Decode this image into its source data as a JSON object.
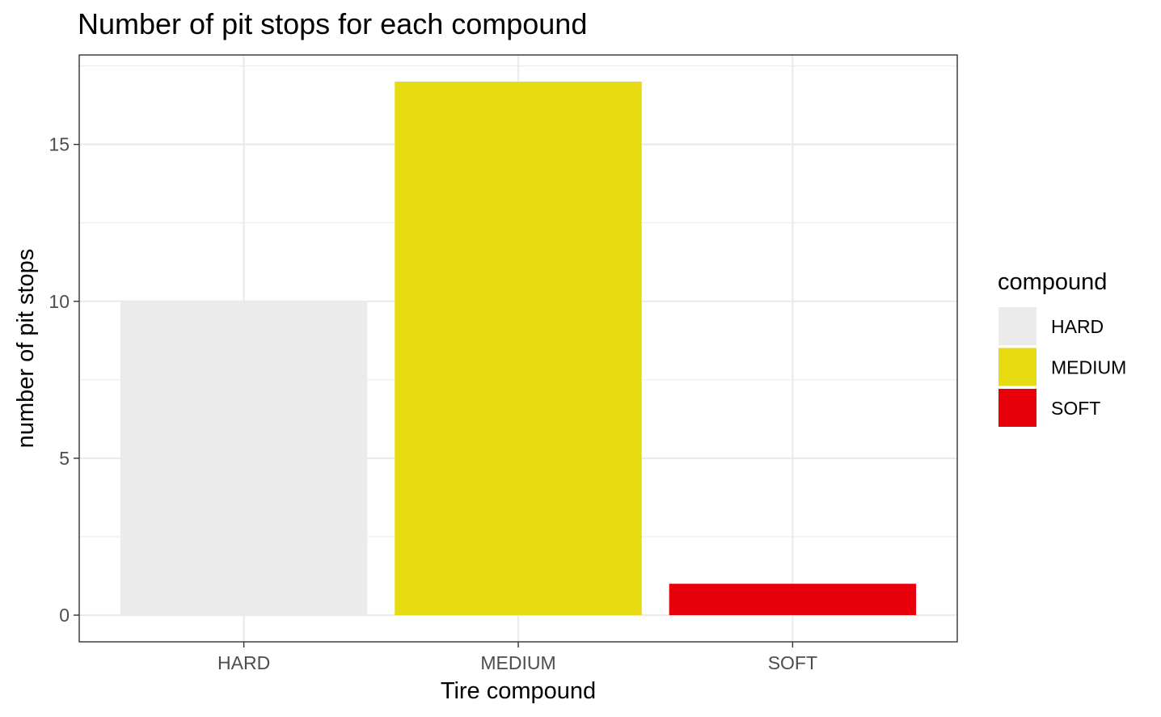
{
  "chart_data": {
    "type": "bar",
    "title": "Number of pit stops for each compound",
    "xlabel": "Tire compound",
    "ylabel": "number of pit stops",
    "categories": [
      "HARD",
      "MEDIUM",
      "SOFT"
    ],
    "values": [
      10,
      17,
      1
    ],
    "colors": [
      "#ebebeb",
      "#e6da10",
      "#e8000b"
    ],
    "ylim": [
      -0.85,
      17.85
    ],
    "yticks": [
      0,
      5,
      10,
      15
    ],
    "grid": true,
    "legend": {
      "title": "compound",
      "placement": "right",
      "items": [
        {
          "label": "HARD",
          "color": "#ebebeb"
        },
        {
          "label": "MEDIUM",
          "color": "#e6da10"
        },
        {
          "label": "SOFT",
          "color": "#e8000b"
        }
      ]
    }
  }
}
